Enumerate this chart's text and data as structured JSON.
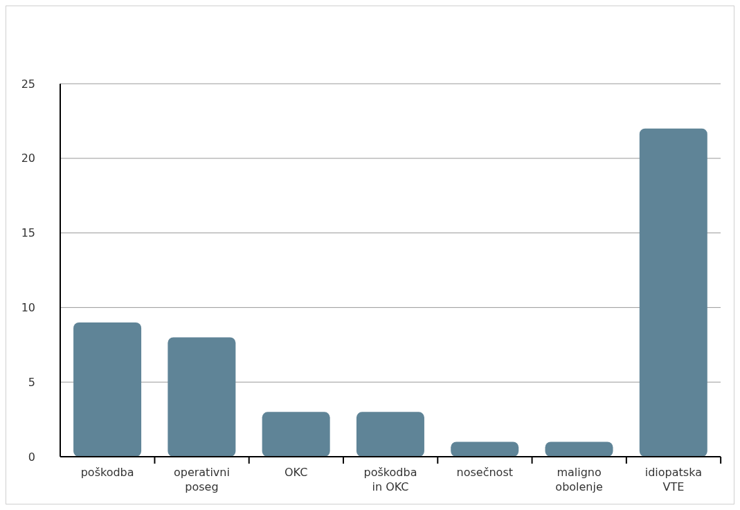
{
  "chart_data": {
    "type": "bar",
    "categories": [
      "poškodba",
      "operativni poseg",
      "OKC",
      "poškodba in OKC",
      "nosečnost",
      "maligno obolenje",
      "idiopatska VTE"
    ],
    "values": [
      9,
      8,
      3,
      3,
      1,
      1,
      22
    ],
    "color": "#5f8497",
    "ylim": [
      0,
      25
    ],
    "yticks": [
      0,
      5,
      10,
      15,
      20,
      25
    ],
    "grid": "y"
  }
}
